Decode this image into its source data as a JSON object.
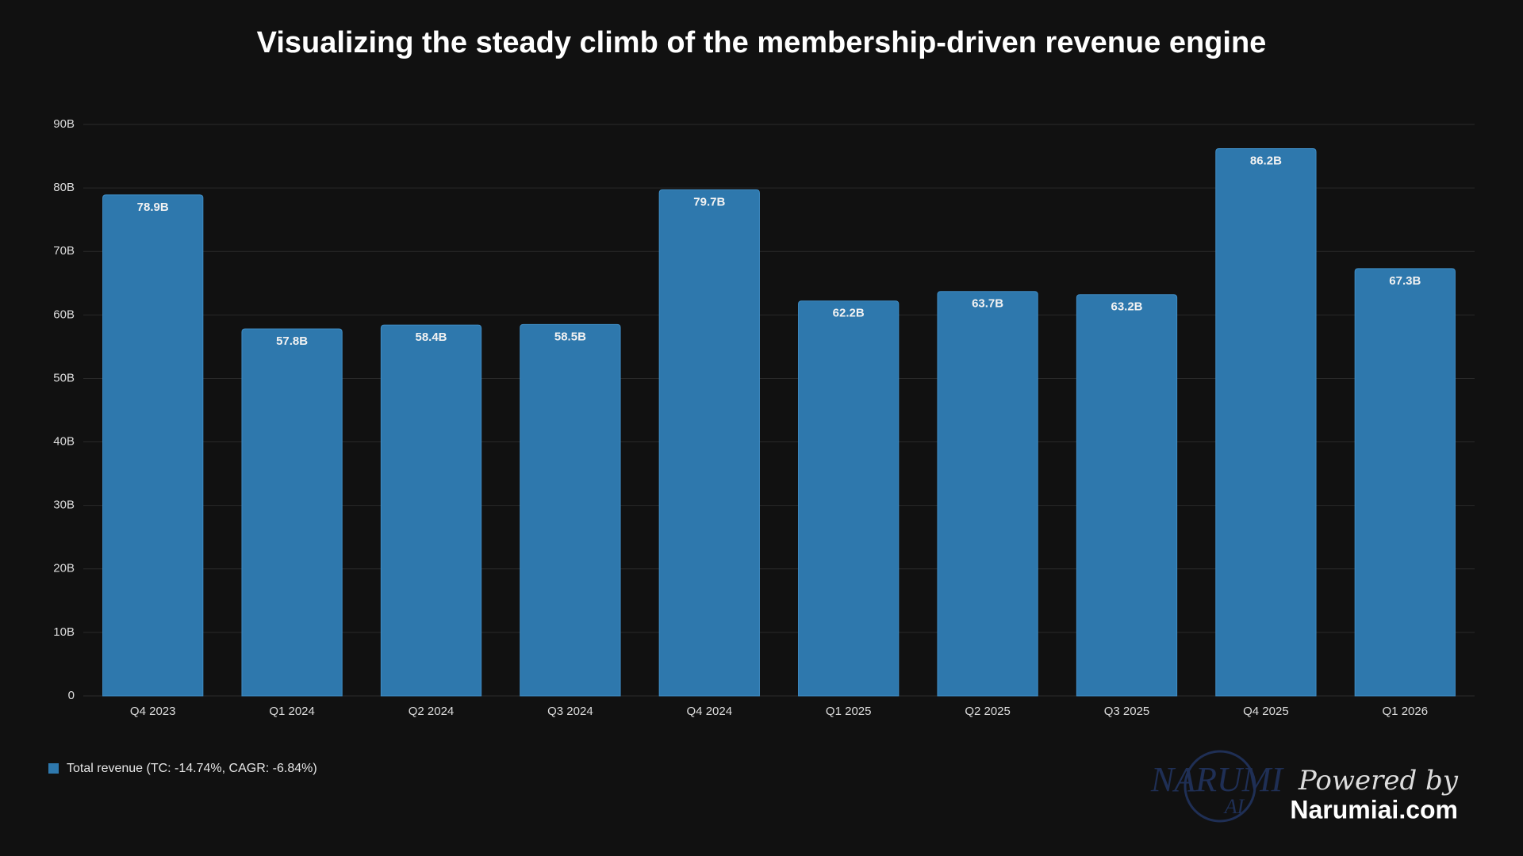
{
  "chart_data": {
    "type": "bar",
    "title": "Visualizing the steady climb of the membership-driven revenue engine",
    "categories": [
      "Q4 2023",
      "Q1 2024",
      "Q2 2024",
      "Q3 2024",
      "Q4 2024",
      "Q1 2025",
      "Q2 2025",
      "Q3 2025",
      "Q4 2025",
      "Q1 2026"
    ],
    "series": [
      {
        "name": "Total revenue (TC: -14.74%, CAGR: -6.84%)",
        "color": "#2e78ad",
        "values": [
          78.9,
          57.8,
          58.4,
          58.5,
          79.7,
          62.2,
          63.7,
          63.2,
          86.2,
          67.3
        ],
        "value_labels": [
          "78.9B",
          "57.8B",
          "58.4B",
          "58.5B",
          "79.7B",
          "62.2B",
          "63.7B",
          "63.2B",
          "86.2B",
          "67.3B"
        ]
      }
    ],
    "ylim": [
      0,
      90
    ],
    "yticks": [
      0,
      {
        "value": 10,
        "label": "10B"
      },
      {
        "value": 20,
        "label": "20B"
      },
      {
        "value": 30,
        "label": "30B"
      },
      {
        "value": 40,
        "label": "40B"
      },
      {
        "value": 50,
        "label": "50B"
      },
      {
        "value": 60,
        "label": "60B"
      },
      {
        "value": 70,
        "label": "70B"
      },
      {
        "value": 80,
        "label": "80B"
      },
      {
        "value": 90,
        "label": "90B"
      }
    ],
    "grid": true
  },
  "watermark": {
    "logo": "NARUMI",
    "logo_sub": "AI",
    "powered_by": "Powered by",
    "site": "Narumiai.com"
  }
}
